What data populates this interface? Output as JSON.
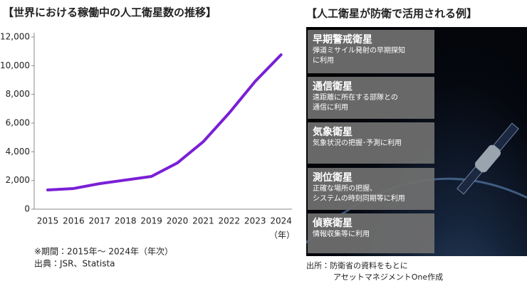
{
  "chart_data": {
    "type": "line",
    "title": "【世界における稼働中の人工衛星数の推移】",
    "categories": [
      "2015",
      "2016",
      "2017",
      "2018",
      "2019",
      "2020",
      "2021",
      "2022",
      "2023",
      "2024"
    ],
    "values": [
      1340,
      1440,
      1780,
      2030,
      2280,
      3220,
      4700,
      6700,
      8900,
      10760
    ],
    "color": "#7a1fd6",
    "x_unit": "（年）",
    "ylim": [
      0,
      12000
    ],
    "yticks": [
      0,
      {
        "value": 2000,
        "label": "2,000"
      },
      {
        "value": 4000,
        "label": "4,000"
      },
      {
        "value": 6000,
        "label": "6,000"
      },
      {
        "value": 8000,
        "label": "8,000"
      },
      {
        "value": 10000,
        "label": "10,000"
      },
      {
        "value": 12000,
        "label": "12,000"
      }
    ],
    "grid": false,
    "notes": [
      "※期間：2015年～ 2024年（年次）",
      "出典：JSR、Statista"
    ]
  },
  "panel": {
    "title": "【人工衛星が防衛で活用される例】",
    "items": [
      {
        "name": "早期警戒衛星",
        "lines": [
          "弾道ミサイル発射の早期探知",
          "に利用"
        ]
      },
      {
        "name": "通信衛星",
        "lines": [
          "遠距離に所在する部隊との",
          "通信に利用"
        ]
      },
      {
        "name": "気象衛星",
        "lines": [
          "気象状況の把握･予測に利用"
        ]
      },
      {
        "name": "測位衛星",
        "lines": [
          "正確な場所の把握、",
          "システムの時刻同期等に利用"
        ]
      },
      {
        "name": "偵察衛星",
        "lines": [
          "情報収集等に利用"
        ]
      }
    ],
    "source": [
      "出所：防衛省の資料をもとに",
      "アセットマネジメントOne作成"
    ]
  }
}
